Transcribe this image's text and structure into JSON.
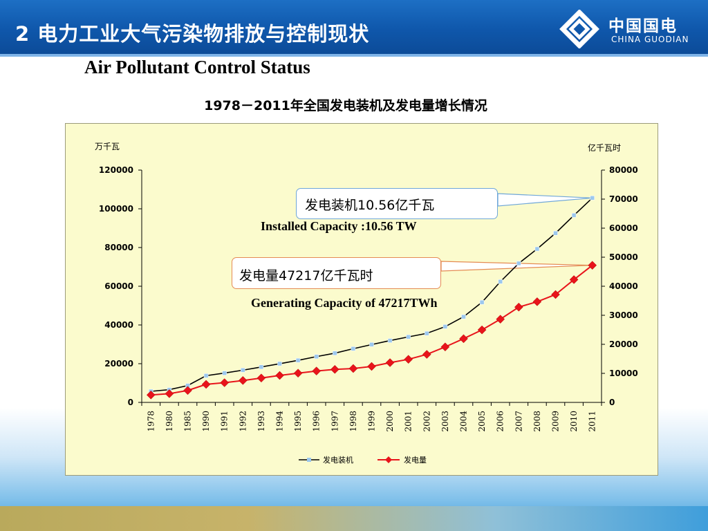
{
  "header": {
    "title": "2  电力工业大气污染物排放与控制现状",
    "logo_cn": "中国国电",
    "logo_en": "CHINA GUODIAN"
  },
  "subtitle": "Air Pollutant Control Status",
  "chart_data": {
    "type": "line",
    "title": "1978－2011年全国发电装机及发电量增长情况",
    "y_left_unit": "万千瓦",
    "y_right_unit": "亿千瓦时",
    "y_left_range": [
      0,
      120000
    ],
    "y_right_range": [
      0,
      80000
    ],
    "y_left_ticks": [
      "0",
      "20000",
      "40000",
      "60000",
      "80000",
      "100000",
      "120000"
    ],
    "y_right_ticks": [
      "0",
      "10000",
      "20000",
      "30000",
      "40000",
      "50000",
      "60000",
      "70000",
      "80000"
    ],
    "categories": [
      "1978",
      "1980",
      "1985",
      "1990",
      "1991",
      "1992",
      "1993",
      "1994",
      "1995",
      "1996",
      "1997",
      "1998",
      "1999",
      "2000",
      "2001",
      "2002",
      "2003",
      "2004",
      "2005",
      "2006",
      "2007",
      "2008",
      "2009",
      "2010",
      "2011"
    ],
    "series": [
      {
        "name": "发电装机",
        "axis": "left",
        "color": "#000000",
        "marker_color": "#9cc8ee",
        "values": [
          5712,
          6587,
          8705,
          13789,
          15147,
          16653,
          18291,
          19990,
          21722,
          23654,
          25424,
          27729,
          29877,
          31932,
          33849,
          35657,
          39141,
          44239,
          51718,
          62370,
          71822,
          79273,
          87410,
          96641,
          105600
        ]
      },
      {
        "name": "发电量",
        "axis": "right",
        "color": "#e8141b",
        "marker_color": "#e8141b",
        "values": [
          2566,
          3006,
          4107,
          6212,
          6775,
          7539,
          8395,
          9281,
          10070,
          10813,
          11356,
          11670,
          12393,
          13685,
          14839,
          16540,
          19106,
          21944,
          24975,
          28657,
          32816,
          34668,
          37147,
          42278,
          47217
        ]
      }
    ],
    "legend_position": "bottom-center",
    "grid": false
  },
  "annotations": {
    "capacity_cn": "发电装机10.56亿千瓦",
    "capacity_en": "Installed  Capacity :10.56 TW",
    "generation_cn": "发电量47217亿千瓦时",
    "generation_en": "Generating Capacity of 47217TWh"
  },
  "colors": {
    "header": "#0f57ab",
    "plot_bg": "#fbfbcd",
    "capacity_line": "#000000",
    "generation_line": "#e8141b"
  }
}
